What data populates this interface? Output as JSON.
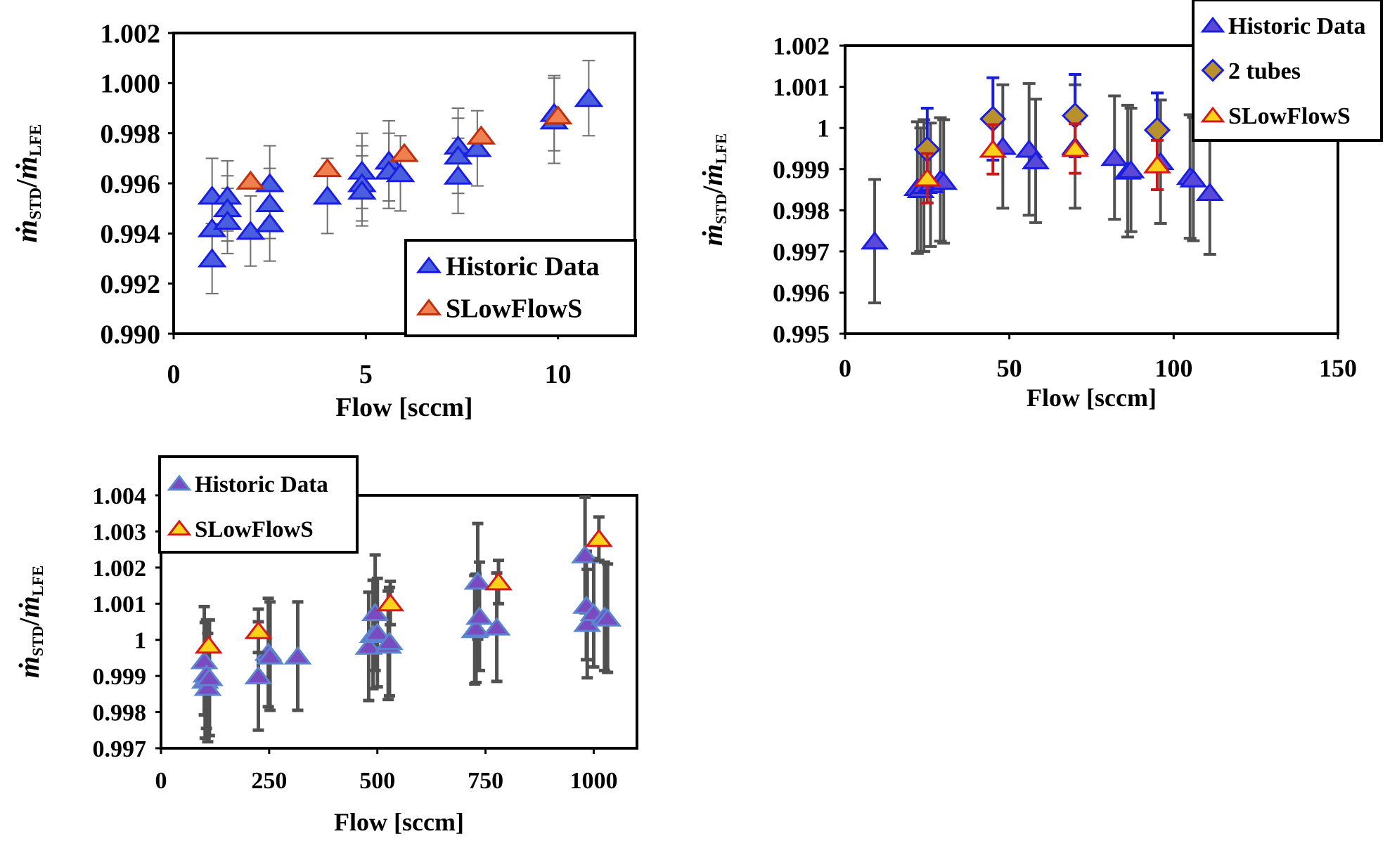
{
  "chart_data": [
    {
      "type": "scatter",
      "title": "",
      "xlabel": "Flow [sccm]",
      "ylabel_parts": [
        "ṁ",
        "STD",
        "/",
        "ṁ",
        "LFE"
      ],
      "xlim": [
        0,
        12
      ],
      "ylim": [
        0.99,
        1.002
      ],
      "x_ticks": [
        0,
        5,
        10
      ],
      "y_ticks": [
        0.99,
        0.992,
        0.994,
        0.996,
        0.998,
        1.0,
        1.002
      ],
      "y_tick_labels": [
        "0.990",
        "0.992",
        "0.994",
        "0.996",
        "0.998",
        "1.000",
        "1.002"
      ],
      "legend": {
        "placement": "bottom-right",
        "items": [
          "Historic Data",
          "SLowFlowS"
        ]
      },
      "series": [
        {
          "name": "Historic Data",
          "marker": "triangle",
          "fill": "#4a5ee0",
          "stroke": "#1a1ee0",
          "points": [
            {
              "x": 1.0,
              "y": 0.9955,
              "err": 0.0015
            },
            {
              "x": 1.0,
              "y": 0.9942,
              "err": 0.0013
            },
            {
              "x": 1.0,
              "y": 0.993,
              "err": 0.0014
            },
            {
              "x": 1.4,
              "y": 0.9955,
              "err": 0.0014
            },
            {
              "x": 1.4,
              "y": 0.995,
              "err": 0.0013
            },
            {
              "x": 1.4,
              "y": 0.9945,
              "err": 0.0013
            },
            {
              "x": 2.0,
              "y": 0.9941,
              "err": 0.0014
            },
            {
              "x": 2.5,
              "y": 0.996,
              "err": 0.0015
            },
            {
              "x": 2.5,
              "y": 0.9952,
              "err": 0.0014
            },
            {
              "x": 2.5,
              "y": 0.9944,
              "err": 0.0015
            },
            {
              "x": 4.0,
              "y": 0.9955,
              "err": 0.0015
            },
            {
              "x": 4.9,
              "y": 0.9965,
              "err": 0.0015
            },
            {
              "x": 4.9,
              "y": 0.996,
              "err": 0.0015
            },
            {
              "x": 4.9,
              "y": 0.9957,
              "err": 0.0014
            },
            {
              "x": 5.6,
              "y": 0.9969,
              "err": 0.0016
            },
            {
              "x": 5.6,
              "y": 0.9965,
              "err": 0.0015
            },
            {
              "x": 5.9,
              "y": 0.9964,
              "err": 0.0015
            },
            {
              "x": 7.4,
              "y": 0.9975,
              "err": 0.0015
            },
            {
              "x": 7.4,
              "y": 0.9971,
              "err": 0.0015
            },
            {
              "x": 7.4,
              "y": 0.9963,
              "err": 0.0015
            },
            {
              "x": 7.9,
              "y": 0.9974,
              "err": 0.0015
            },
            {
              "x": 9.9,
              "y": 0.9985,
              "err": 0.0017
            },
            {
              "x": 9.9,
              "y": 0.9988,
              "err": 0.0015
            },
            {
              "x": 10.8,
              "y": 0.9994,
              "err": 0.0015
            }
          ]
        },
        {
          "name": "SLowFlowS",
          "marker": "triangle",
          "fill": "#f08050",
          "stroke": "#c03010",
          "points": [
            {
              "x": 2.0,
              "y": 0.9961,
              "err": 0.0
            },
            {
              "x": 4.0,
              "y": 0.9966,
              "err": 0.0
            },
            {
              "x": 6.0,
              "y": 0.9972,
              "err": 0.0
            },
            {
              "x": 8.0,
              "y": 0.9979,
              "err": 0.0
            },
            {
              "x": 10.0,
              "y": 0.9987,
              "err": 0.0
            }
          ]
        }
      ]
    },
    {
      "type": "scatter",
      "title": "",
      "xlabel": "Flow [sccm]",
      "ylabel_parts": [
        "ṁ",
        "STD",
        "/",
        "ṁ",
        "LFE"
      ],
      "xlim": [
        0,
        150
      ],
      "ylim": [
        0.995,
        1.002
      ],
      "x_ticks": [
        0,
        50,
        100,
        150
      ],
      "y_ticks": [
        0.995,
        0.996,
        0.997,
        0.998,
        0.999,
        1.0,
        1.001,
        1.002
      ],
      "y_tick_labels": [
        "0.995",
        "0.996",
        "0.997",
        "0.998",
        "0.999",
        "1",
        "1.001",
        "1.002"
      ],
      "legend": {
        "placement": "top-right",
        "items": [
          "Historic Data",
          "2 tubes",
          "SLowFlowS"
        ]
      },
      "series": [
        {
          "name": "Historic Data",
          "marker": "triangle",
          "fill": "#5a48d8",
          "stroke": "#1a1ee0",
          "points": [
            {
              "x": 9,
              "y": 0.99725,
              "err": 0.0015
            },
            {
              "x": 22,
              "y": 0.99855,
              "err": 0.0016
            },
            {
              "x": 23,
              "y": 0.9985,
              "err": 0.0015
            },
            {
              "x": 24,
              "y": 0.9986,
              "err": 0.0016
            },
            {
              "x": 26,
              "y": 0.99862,
              "err": 0.0015
            },
            {
              "x": 29,
              "y": 0.99875,
              "err": 0.0015
            },
            {
              "x": 30,
              "y": 0.9987,
              "err": 0.0015
            },
            {
              "x": 48,
              "y": 0.99955,
              "err": 0.0015
            },
            {
              "x": 56,
              "y": 0.99948,
              "err": 0.0016
            },
            {
              "x": 58,
              "y": 0.9992,
              "err": 0.0015
            },
            {
              "x": 70,
              "y": 0.99955,
              "err": 0.0015
            },
            {
              "x": 82,
              "y": 0.99928,
              "err": 0.0015
            },
            {
              "x": 86,
              "y": 0.99895,
              "err": 0.0016
            },
            {
              "x": 87,
              "y": 0.99898,
              "err": 0.0015
            },
            {
              "x": 96,
              "y": 0.99918,
              "err": 0.0015
            },
            {
              "x": 105,
              "y": 0.99882,
              "err": 0.0015
            },
            {
              "x": 106,
              "y": 0.99876,
              "err": 0.0015
            },
            {
              "x": 111,
              "y": 0.99843,
              "err": 0.0015
            }
          ]
        },
        {
          "name": "2 tubes",
          "marker": "diamond",
          "fill": "#b8902c",
          "stroke": "#1a1ee0",
          "points": [
            {
              "x": 25,
              "y": 0.99948,
              "err": 0.001
            },
            {
              "x": 45,
              "y": 1.00022,
              "err": 0.001
            },
            {
              "x": 70,
              "y": 1.0003,
              "err": 0.001
            },
            {
              "x": 95,
              "y": 0.99995,
              "err": 0.0009
            }
          ]
        },
        {
          "name": "SLowFlowS",
          "marker": "triangle",
          "fill": "#ffd21a",
          "stroke": "#d81818",
          "points": [
            {
              "x": 25,
              "y": 0.99878,
              "err": 0.0006
            },
            {
              "x": 45,
              "y": 0.99948,
              "err": 0.0006
            },
            {
              "x": 70,
              "y": 0.9995,
              "err": 0.0006
            },
            {
              "x": 95,
              "y": 0.9991,
              "err": 0.0006
            }
          ]
        }
      ]
    },
    {
      "type": "scatter",
      "title": "",
      "xlabel": "Flow [sccm]",
      "ylabel_parts": [
        "ṁ",
        "STD",
        "/",
        "ṁ",
        "LFE"
      ],
      "xlim": [
        0,
        1100
      ],
      "ylim": [
        0.997,
        1.004
      ],
      "x_ticks": [
        0,
        250,
        500,
        750,
        1000
      ],
      "y_ticks": [
        0.997,
        0.998,
        0.999,
        1.0,
        1.001,
        1.002,
        1.003,
        1.004
      ],
      "y_tick_labels": [
        "0.997",
        "0.998",
        "0.999",
        "1",
        "1.001",
        "1.002",
        "1.003",
        "1.004"
      ],
      "legend": {
        "placement": "top-left",
        "items": [
          "Historic Data",
          "SLowFlowS"
        ]
      },
      "series": [
        {
          "name": "Historic Data",
          "marker": "triangle",
          "fill": "#7a4ac0",
          "stroke": "#5a86d0",
          "points": [
            {
              "x": 100,
              "y": 0.99942,
              "err": 0.0015
            },
            {
              "x": 102,
              "y": 0.99888,
              "err": 0.0016
            },
            {
              "x": 105,
              "y": 0.99905,
              "err": 0.0015
            },
            {
              "x": 108,
              "y": 0.99868,
              "err": 0.0015
            },
            {
              "x": 112,
              "y": 0.99895,
              "err": 0.0016
            },
            {
              "x": 225,
              "y": 0.999,
              "err": 0.0015
            },
            {
              "x": 248,
              "y": 0.99965,
              "err": 0.0015
            },
            {
              "x": 252,
              "y": 0.99955,
              "err": 0.0015
            },
            {
              "x": 316,
              "y": 0.99955,
              "err": 0.0015
            },
            {
              "x": 480,
              "y": 0.99982,
              "err": 0.0015
            },
            {
              "x": 490,
              "y": 1.00015,
              "err": 0.0015
            },
            {
              "x": 495,
              "y": 1.00075,
              "err": 0.0016
            },
            {
              "x": 500,
              "y": 1.0002,
              "err": 0.0015
            },
            {
              "x": 525,
              "y": 0.99985,
              "err": 0.0015
            },
            {
              "x": 528,
              "y": 0.99995,
              "err": 0.0015
            },
            {
              "x": 725,
              "y": 1.00028,
              "err": 0.0015
            },
            {
              "x": 728,
              "y": 1.00032,
              "err": 0.0015
            },
            {
              "x": 732,
              "y": 1.00162,
              "err": 0.0016
            },
            {
              "x": 736,
              "y": 1.00065,
              "err": 0.0015
            },
            {
              "x": 776,
              "y": 1.00035,
              "err": 0.0015
            },
            {
              "x": 980,
              "y": 1.00235,
              "err": 0.0016
            },
            {
              "x": 983,
              "y": 1.00095,
              "err": 0.0015
            },
            {
              "x": 985,
              "y": 1.00045,
              "err": 0.0015
            },
            {
              "x": 1000,
              "y": 1.00075,
              "err": 0.0015
            },
            {
              "x": 1025,
              "y": 1.00065,
              "err": 0.0015
            },
            {
              "x": 1032,
              "y": 1.0006,
              "err": 0.0015
            }
          ]
        },
        {
          "name": "SLowFlowS",
          "marker": "triangle",
          "fill": "#ffd21a",
          "stroke": "#d81818",
          "points": [
            {
              "x": 110,
              "y": 0.99985,
              "err": 0.0
            },
            {
              "x": 225,
              "y": 1.00025,
              "err": 0.0006
            },
            {
              "x": 530,
              "y": 1.00102,
              "err": 0.0006
            },
            {
              "x": 780,
              "y": 1.0016,
              "err": 0.0006
            },
            {
              "x": 1012,
              "y": 1.0028,
              "err": 0.0006
            }
          ]
        }
      ]
    }
  ]
}
